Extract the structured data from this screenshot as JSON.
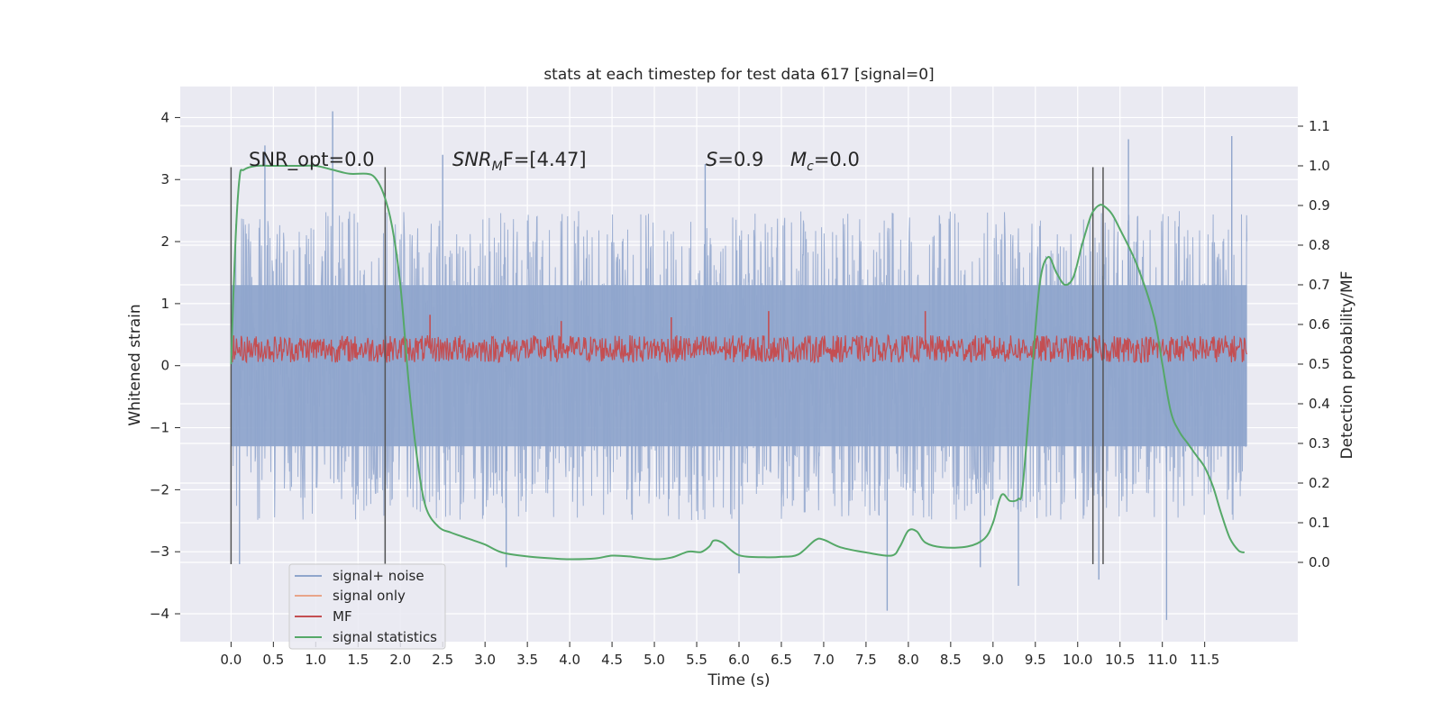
{
  "chart_data": {
    "type": "line",
    "title": "stats at each timestep for test data 617 [signal=0]",
    "xlabel": "Time (s)",
    "ylabel": "Whitened strain",
    "ylabel_right": "Detection probability/MF",
    "xlim": [
      -0.6,
      12.6
    ],
    "ylim": [
      -4.45,
      4.5
    ],
    "ylim_right": [
      -0.2,
      1.2
    ],
    "x_ticks": [
      0.0,
      0.5,
      1.0,
      1.5,
      2.0,
      2.5,
      3.0,
      3.5,
      4.0,
      4.5,
      5.0,
      5.5,
      6.0,
      6.5,
      7.0,
      7.5,
      8.0,
      8.5,
      9.0,
      9.5,
      10.0,
      10.5,
      11.0,
      11.5
    ],
    "x_tick_labels": [
      "0.0",
      "0.5",
      "1.0",
      "1.5",
      "2.0",
      "2.5",
      "3.0",
      "3.5",
      "4.0",
      "4.5",
      "5.0",
      "5.5",
      "6.0",
      "6.5",
      "7.0",
      "7.5",
      "8.0",
      "8.5",
      "9.0",
      "9.5",
      "10.0",
      "10.5",
      "11.0",
      "11.5"
    ],
    "y_ticks": [
      -4,
      -3,
      -2,
      -1,
      0,
      1,
      2,
      3,
      4
    ],
    "y_tick_labels": [
      "−4",
      "−3",
      "−2",
      "−1",
      "0",
      "1",
      "2",
      "3",
      "4"
    ],
    "y_ticks_right": [
      0.0,
      0.1,
      0.2,
      0.3,
      0.4,
      0.5,
      0.6,
      0.7,
      0.8,
      0.9,
      1.0,
      1.1
    ],
    "y_tick_labels_right": [
      "0.0",
      "0.1",
      "0.2",
      "0.3",
      "0.4",
      "0.5",
      "0.6",
      "0.7",
      "0.8",
      "0.9",
      "1.0",
      "1.1"
    ],
    "grid": true,
    "legend_position": "lower-left",
    "annotations": {
      "snr_opt": "SNR_opt=0.0",
      "snr_mf_main": "SNR",
      "snr_mf_sub": "M",
      "snr_mf_rest": "F=[4.47]",
      "s_main": "S",
      "s_rest": "=0.9",
      "mc_main": "M",
      "mc_sub": "c",
      "mc_rest": "=0.0"
    },
    "series": [
      {
        "name": "signal+ noise",
        "color": "#8fa5cc",
        "axis": "left",
        "note": "noise",
        "t_range": [
          0.0,
          12.0
        ],
        "core_band": [
          -1.3,
          1.3
        ],
        "typical_range": [
          -2.5,
          2.8
        ],
        "peaks": [
          [
            1.2,
            4.1
          ],
          [
            11.82,
            3.7
          ],
          [
            10.6,
            3.65
          ],
          [
            0.4,
            3.55
          ],
          [
            11.05,
            -4.1
          ],
          [
            7.75,
            -3.95
          ],
          [
            9.3,
            -3.55
          ],
          [
            10.25,
            -3.45
          ],
          [
            0.1,
            -3.2
          ],
          [
            1.82,
            -3.2
          ],
          [
            3.25,
            -3.25
          ],
          [
            6.0,
            -3.35
          ],
          [
            8.85,
            -3.25
          ],
          [
            2.5,
            3.4
          ],
          [
            5.6,
            3.25
          ]
        ]
      },
      {
        "name": "signal only",
        "color": "#e8a489",
        "axis": "left",
        "x": [],
        "y": []
      },
      {
        "name": "MF",
        "color": "#c44e52",
        "axis": "left",
        "note": "noise",
        "t_range": [
          0.0,
          12.0
        ],
        "center": 0.27,
        "amplitude": 0.22,
        "peaks": [
          [
            2.35,
            0.82
          ],
          [
            5.2,
            0.78
          ],
          [
            6.35,
            0.88
          ],
          [
            8.2,
            0.88
          ],
          [
            3.9,
            0.72
          ]
        ]
      },
      {
        "name": "signal statistics",
        "color": "#55a868",
        "axis": "right",
        "x": [
          0.0,
          0.05,
          0.1,
          0.15,
          0.3,
          0.5,
          0.8,
          1.0,
          1.2,
          1.4,
          1.6,
          1.7,
          1.8,
          1.9,
          2.0,
          2.1,
          2.2,
          2.3,
          2.45,
          2.6,
          2.8,
          3.0,
          3.2,
          3.5,
          3.8,
          4.0,
          4.3,
          4.5,
          4.7,
          5.0,
          5.2,
          5.4,
          5.55,
          5.65,
          5.7,
          5.8,
          6.0,
          6.3,
          6.5,
          6.7,
          6.9,
          7.0,
          7.2,
          7.5,
          7.8,
          7.9,
          8.0,
          8.1,
          8.2,
          8.4,
          8.7,
          8.9,
          9.0,
          9.1,
          9.2,
          9.3,
          9.35,
          9.45,
          9.55,
          9.65,
          9.75,
          9.85,
          9.95,
          10.05,
          10.15,
          10.2,
          10.25,
          10.3,
          10.4,
          10.5,
          10.7,
          10.9,
          11.0,
          11.1,
          11.2,
          11.3,
          11.4,
          11.5,
          11.6,
          11.7,
          11.8,
          11.9,
          11.97
        ],
        "y": [
          0.5,
          0.8,
          0.97,
          0.99,
          1.0,
          1.0,
          1.0,
          1.0,
          0.99,
          0.98,
          0.98,
          0.97,
          0.93,
          0.85,
          0.7,
          0.45,
          0.26,
          0.14,
          0.09,
          0.075,
          0.06,
          0.045,
          0.025,
          0.015,
          0.01,
          0.008,
          0.01,
          0.017,
          0.015,
          0.008,
          0.012,
          0.027,
          0.026,
          0.04,
          0.055,
          0.05,
          0.018,
          0.013,
          0.014,
          0.02,
          0.056,
          0.057,
          0.038,
          0.025,
          0.017,
          0.04,
          0.08,
          0.078,
          0.05,
          0.038,
          0.04,
          0.06,
          0.1,
          0.17,
          0.155,
          0.16,
          0.19,
          0.45,
          0.7,
          0.77,
          0.73,
          0.7,
          0.72,
          0.8,
          0.87,
          0.89,
          0.9,
          0.9,
          0.88,
          0.84,
          0.75,
          0.62,
          0.5,
          0.38,
          0.33,
          0.3,
          0.27,
          0.24,
          0.19,
          0.12,
          0.06,
          0.03,
          0.025
        ]
      }
    ],
    "vertical_lines": [
      0.0,
      1.82,
      10.18,
      10.3
    ]
  }
}
